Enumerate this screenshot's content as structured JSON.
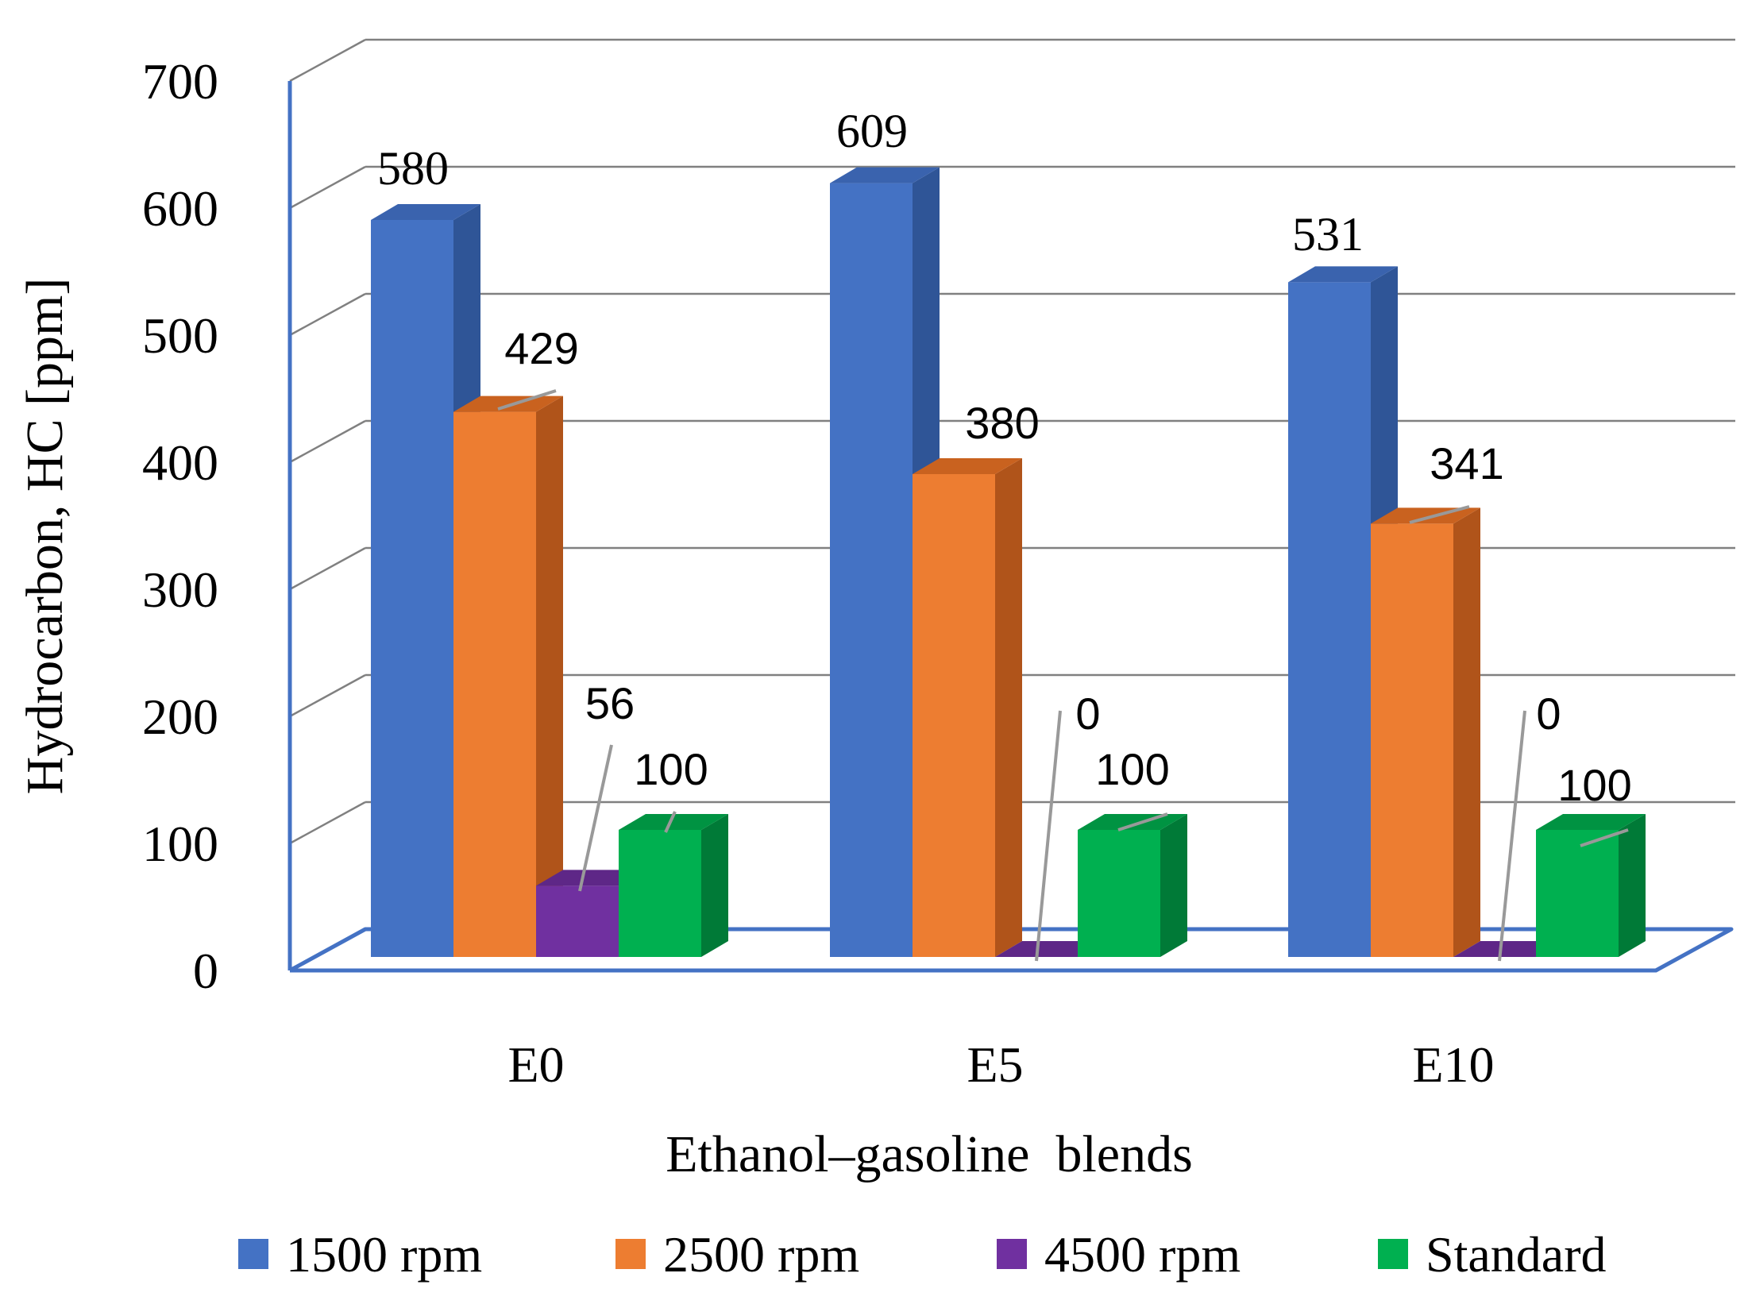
{
  "chart_data": {
    "type": "bar",
    "title": "",
    "xlabel": "Ethanol–gasoline  blends",
    "ylabel": "Hydrocarbon, HC [ppm]",
    "categories": [
      "E0",
      "E5",
      "E10"
    ],
    "ylim": [
      0,
      700
    ],
    "yticks": [
      0,
      100,
      200,
      300,
      400,
      500,
      600,
      700
    ],
    "grid": true,
    "legend_position": "bottom",
    "series": [
      {
        "name": "1500 rpm",
        "values": [
          580,
          609,
          531
        ],
        "color": "#4472C4",
        "side_color": "#2F5597",
        "top_color": "#3A63AE"
      },
      {
        "name": "2500 rpm",
        "values": [
          429,
          380,
          341
        ],
        "color": "#ED7D31",
        "side_color": "#B0541A",
        "top_color": "#C9621F"
      },
      {
        "name": "4500 rpm",
        "values": [
          56,
          0,
          0
        ],
        "color": "#7030A0",
        "side_color": "#4E1F73",
        "top_color": "#5E2787"
      },
      {
        "name": "Standard",
        "values": [
          100,
          100,
          100
        ],
        "color": "#00B050",
        "side_color": "#007A37",
        "top_color": "#009342"
      }
    ],
    "data_labels": [
      [
        "580",
        "609",
        "531"
      ],
      [
        "429",
        "380",
        "341"
      ],
      [
        "56",
        "0",
        "0"
      ],
      [
        "100",
        "100",
        "100"
      ]
    ],
    "axis_color": "#4472C4",
    "grid_color": "#808080"
  }
}
